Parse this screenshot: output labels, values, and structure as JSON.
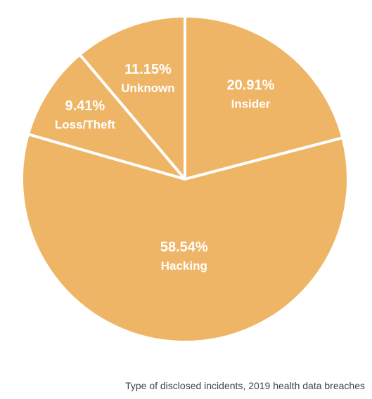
{
  "caption": "Type of disclosed incidents, 2019 health data breaches",
  "colors": {
    "slice": "#efb566",
    "separator": "#ffffff",
    "label": "#ffffff",
    "caption": "#3d4652"
  },
  "chart_data": {
    "type": "pie",
    "title": "",
    "categories": [
      "Insider",
      "Hacking",
      "Loss/Theft",
      "Unknown"
    ],
    "values": [
      20.91,
      58.54,
      9.41,
      11.15
    ],
    "value_labels": [
      "20.91%",
      "58.54%",
      "9.41%",
      "11.15%"
    ],
    "start": "12 o'clock",
    "direction": "clockwise",
    "legend": "none"
  }
}
